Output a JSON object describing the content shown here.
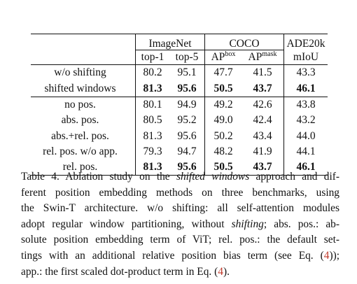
{
  "table": {
    "groups": {
      "imagenet": "ImageNet",
      "coco": "COCO",
      "ade": "ADE20k"
    },
    "subheaders": {
      "top1": "top-1",
      "top5": "top-5",
      "ap_box_base": "AP",
      "ap_box_sup": "box",
      "ap_mask_base": "AP",
      "ap_mask_sup": "mask",
      "miou": "mIoU"
    },
    "block1": [
      {
        "method": "w/o shifting",
        "top1": "80.2",
        "top5": "95.1",
        "apbox": "47.7",
        "apmask": "41.5",
        "miou": "43.3"
      },
      {
        "method": "shifted windows",
        "top1": "81.3",
        "top5": "95.6",
        "apbox": "50.5",
        "apmask": "43.7",
        "miou": "46.1"
      }
    ],
    "block2": [
      {
        "method": "no pos.",
        "top1": "80.1",
        "top5": "94.9",
        "apbox": "49.2",
        "apmask": "42.6",
        "miou": "43.8"
      },
      {
        "method": "abs. pos.",
        "top1": "80.5",
        "top5": "95.2",
        "apbox": "49.0",
        "apmask": "42.4",
        "miou": "43.2"
      },
      {
        "method": "abs.+rel. pos.",
        "top1": "81.3",
        "top5": "95.6",
        "apbox": "50.2",
        "apmask": "43.4",
        "miou": "44.0"
      },
      {
        "method": "rel. pos. w/o app.",
        "top1": "79.3",
        "top5": "94.7",
        "apbox": "48.2",
        "apmask": "41.9",
        "miou": "44.1"
      },
      {
        "method": "rel. pos.",
        "top1": "81.3",
        "top5": "95.6",
        "apbox": "50.5",
        "apmask": "43.7",
        "miou": "46.1"
      }
    ]
  },
  "caption": {
    "l1a": "Table 4. Ablation study on the ",
    "l1b": "shifted windows",
    "l1c": " approach and dif-",
    "l2": "ferent position embedding methods on three benchmarks, using",
    "l3": "the Swin-T architecture. w/o shifting: all self-attention modules",
    "l4a": "adopt regular window partitioning, without ",
    "l4b": "shifting",
    "l4c": "; abs. pos.: ab-",
    "l5": "solute position embedding term of ViT; rel. pos.: the default set-",
    "l6a": "tings with an additional relative position bias term (see Eq. (",
    "l6ref": "4",
    "l6b": "));",
    "l7a": "app.: the first scaled dot-product term in Eq. (",
    "l7ref": "4",
    "l7b": ")."
  },
  "colors": {
    "text": "#111111",
    "reference": "#c0392b"
  }
}
